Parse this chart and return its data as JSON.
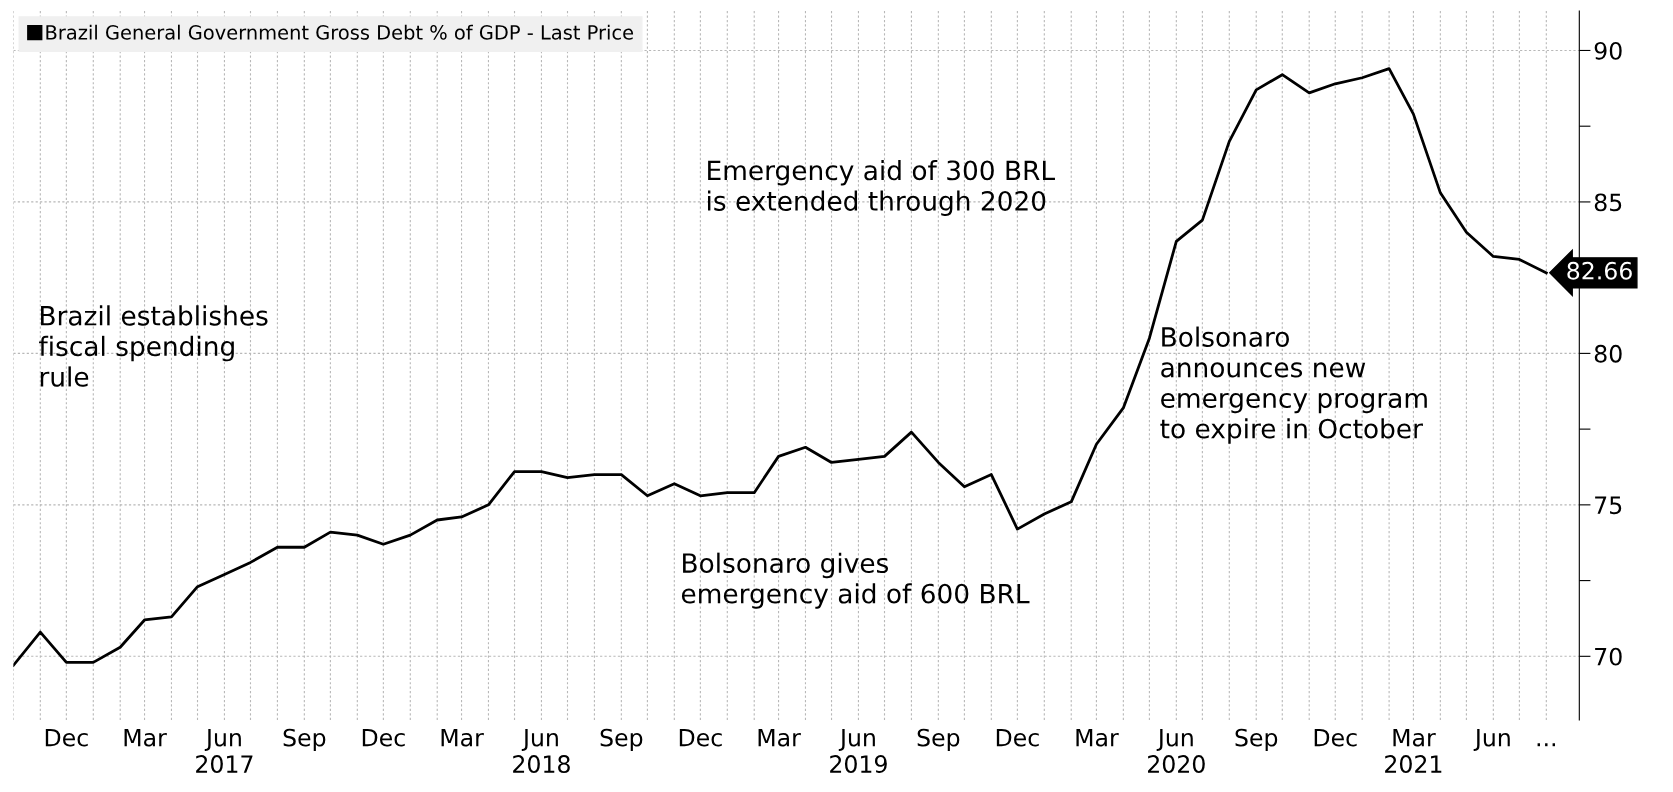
{
  "chart_data": {
    "type": "line",
    "legend": "top left",
    "grid": true,
    "marker": "none",
    "line_style": "solid",
    "x": [
      "2016-10",
      "2016-11",
      "2016-12",
      "2017-01",
      "2017-02",
      "2017-03",
      "2017-04",
      "2017-05",
      "2017-06",
      "2017-07",
      "2017-08",
      "2017-09",
      "2017-10",
      "2017-11",
      "2017-12",
      "2018-01",
      "2018-02",
      "2018-03",
      "2018-04",
      "2018-05",
      "2018-06",
      "2018-07",
      "2018-08",
      "2018-09",
      "2018-10",
      "2018-11",
      "2018-12",
      "2019-01",
      "2019-02",
      "2019-03",
      "2019-04",
      "2019-05",
      "2019-06",
      "2019-07",
      "2019-08",
      "2019-09",
      "2019-10",
      "2019-11",
      "2019-12",
      "2020-01",
      "2020-02",
      "2020-03",
      "2020-04",
      "2020-05",
      "2020-06",
      "2020-07",
      "2020-08",
      "2020-09",
      "2020-10",
      "2020-11",
      "2020-12",
      "2021-01",
      "2021-02",
      "2021-03",
      "2021-04",
      "2021-05",
      "2021-06",
      "2021-07",
      "2021-08"
    ],
    "series": [
      {
        "name": "Brazil General Government Gross Debt % of GDP - Last Price",
        "color": "#000000",
        "values": [
          69.7,
          70.8,
          69.8,
          69.8,
          70.3,
          71.2,
          71.3,
          72.3,
          72.7,
          73.1,
          73.6,
          73.6,
          74.1,
          74.0,
          73.7,
          74.0,
          74.5,
          74.6,
          75.0,
          76.1,
          76.1,
          75.9,
          76.0,
          76.0,
          75.3,
          75.7,
          75.3,
          75.4,
          75.4,
          76.6,
          76.9,
          76.4,
          76.5,
          76.6,
          77.4,
          76.4,
          75.6,
          76.0,
          74.2,
          74.7,
          75.1,
          77.0,
          78.2,
          80.5,
          83.7,
          84.4,
          87.0,
          88.7,
          89.2,
          88.6,
          88.9,
          89.1,
          89.4,
          87.9,
          85.3,
          84.0,
          83.2,
          83.1,
          82.66
        ],
        "value_labels": [
          null,
          null,
          null,
          null,
          null,
          null,
          null,
          null,
          null,
          null,
          null,
          null,
          null,
          null,
          null,
          null,
          null,
          null,
          null,
          null,
          null,
          null,
          null,
          null,
          null,
          null,
          null,
          null,
          null,
          null,
          null,
          null,
          null,
          null,
          null,
          null,
          null,
          null,
          null,
          null,
          null,
          null,
          null,
          null,
          null,
          null,
          null,
          null,
          null,
          null,
          null,
          null,
          null,
          null,
          null,
          null,
          null,
          null,
          "82.66"
        ]
      }
    ],
    "xlim": [
      "2016-10-01",
      "2021-09-08"
    ],
    "xticks": [
      {
        "value": "2016-10",
        "label": null
      },
      {
        "value": "2016-11",
        "label": null
      },
      {
        "value": "2016-12",
        "label": "Dec"
      },
      {
        "value": "2017-01",
        "label": null
      },
      {
        "value": "2017-02",
        "label": null
      },
      {
        "value": "2017-03",
        "label": "Mar"
      },
      {
        "value": "2017-04",
        "label": null
      },
      {
        "value": "2017-05",
        "label": null
      },
      {
        "value": "2017-06",
        "label": "Jun\n2017"
      },
      {
        "value": "2017-07",
        "label": null
      },
      {
        "value": "2017-08",
        "label": null
      },
      {
        "value": "2017-09",
        "label": "Sep"
      },
      {
        "value": "2017-10",
        "label": null
      },
      {
        "value": "2017-11",
        "label": null
      },
      {
        "value": "2017-12",
        "label": "Dec"
      },
      {
        "value": "2018-01",
        "label": null
      },
      {
        "value": "2018-02",
        "label": null
      },
      {
        "value": "2018-03",
        "label": "Mar"
      },
      {
        "value": "2018-04",
        "label": null
      },
      {
        "value": "2018-05",
        "label": null
      },
      {
        "value": "2018-06",
        "label": "Jun\n2018"
      },
      {
        "value": "2018-07",
        "label": null
      },
      {
        "value": "2018-08",
        "label": null
      },
      {
        "value": "2018-09",
        "label": "Sep"
      },
      {
        "value": "2018-10",
        "label": null
      },
      {
        "value": "2018-11",
        "label": null
      },
      {
        "value": "2018-12",
        "label": "Dec"
      },
      {
        "value": "2019-01",
        "label": null
      },
      {
        "value": "2019-02",
        "label": null
      },
      {
        "value": "2019-03",
        "label": "Mar"
      },
      {
        "value": "2019-04",
        "label": null
      },
      {
        "value": "2019-05",
        "label": null
      },
      {
        "value": "2019-06",
        "label": "Jun\n2019"
      },
      {
        "value": "2019-07",
        "label": null
      },
      {
        "value": "2019-08",
        "label": null
      },
      {
        "value": "2019-09",
        "label": "Sep"
      },
      {
        "value": "2019-10",
        "label": null
      },
      {
        "value": "2019-11",
        "label": null
      },
      {
        "value": "2019-12",
        "label": "Dec"
      },
      {
        "value": "2020-01",
        "label": null
      },
      {
        "value": "2020-02",
        "label": null
      },
      {
        "value": "2020-03",
        "label": "Mar"
      },
      {
        "value": "2020-04",
        "label": null
      },
      {
        "value": "2020-05",
        "label": null
      },
      {
        "value": "2020-06",
        "label": "Jun\n2020"
      },
      {
        "value": "2020-07",
        "label": null
      },
      {
        "value": "2020-08",
        "label": null
      },
      {
        "value": "2020-09",
        "label": "Sep"
      },
      {
        "value": "2020-10",
        "label": null
      },
      {
        "value": "2020-11",
        "label": null
      },
      {
        "value": "2020-12",
        "label": "Dec"
      },
      {
        "value": "2021-01",
        "label": null
      },
      {
        "value": "2021-02",
        "label": null
      },
      {
        "value": "2021-03",
        "label": "Mar\n2021"
      },
      {
        "value": "2021-04",
        "label": null
      },
      {
        "value": "2021-05",
        "label": null
      },
      {
        "value": "2021-06",
        "label": "Jun"
      },
      {
        "value": "2021-07",
        "label": null
      },
      {
        "value": "2021-08",
        "label": "..."
      }
    ],
    "ylim": [
      67.9,
      91.3
    ],
    "yticks": [
      70,
      {
        "value": 72.5,
        "label": null
      },
      75,
      {
        "value": 77.5,
        "label": null
      },
      80,
      {
        "value": 82.5,
        "label": null
      },
      85,
      {
        "value": 87.5,
        "label": null
      },
      90
    ],
    "annotations": [
      "Brazil establishes\nfiscal spending\nrule",
      "Emergency aid of 300 BRL\nis extended through 2020",
      "Bolsonaro gives\nemergency aid of 600 BRL",
      "Bolsonaro\nannounces new\nemergency program\nto expire in October"
    ]
  }
}
